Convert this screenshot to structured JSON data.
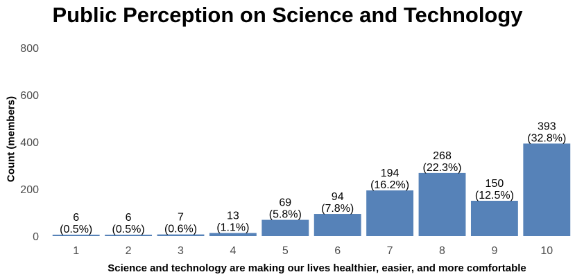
{
  "chart_data": {
    "type": "bar",
    "title": "Public Perception on Science and Technology",
    "xlabel": "Science and technology are making our lives healthier, easier, and more comfortable",
    "ylabel": "Count (members)",
    "categories": [
      "1",
      "2",
      "3",
      "4",
      "5",
      "6",
      "7",
      "8",
      "9",
      "10"
    ],
    "values": [
      6,
      6,
      7,
      13,
      69,
      94,
      194,
      268,
      150,
      393
    ],
    "percent_labels": [
      "(0.5%)",
      "(0.5%)",
      "(0.6%)",
      "(1.1%)",
      "(5.8%)",
      "(7.8%)",
      "(16.2%)",
      "(22.3%)",
      "(12.5%)",
      "(32.8%)"
    ],
    "ylim": [
      0,
      800
    ],
    "yticks": [
      "0",
      "200",
      "400",
      "600",
      "800"
    ],
    "grid": false,
    "bar_color": "#5682b8"
  }
}
